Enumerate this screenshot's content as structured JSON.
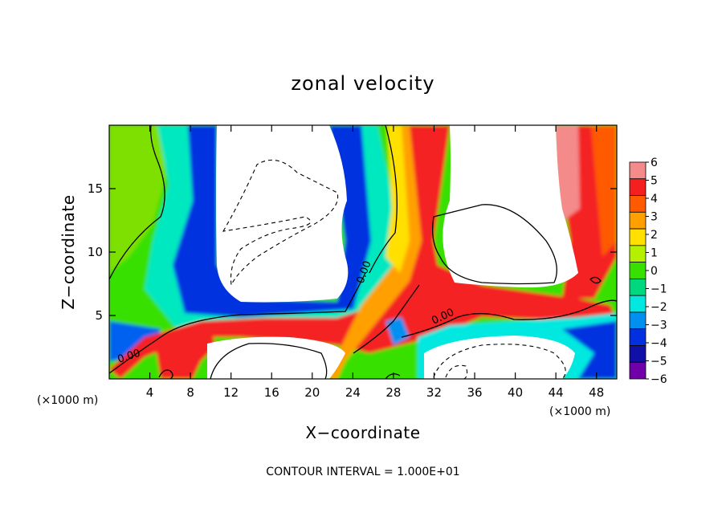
{
  "chart_data": {
    "type": "heatmap",
    "title": "zonal velocity",
    "xlabel": "X−coordinate",
    "ylabel": "Z−coordinate",
    "x_unit_note": "(×1000 m)",
    "z_unit_note": "(×1000 m)",
    "footer": "CONTOUR INTERVAL = 1.000E+01",
    "xlim": [
      0,
      50
    ],
    "ylim": [
      0,
      20
    ],
    "x_ticks": [
      4,
      8,
      12,
      16,
      20,
      24,
      28,
      32,
      36,
      40,
      44,
      48
    ],
    "x_tick_labels": [
      "4",
      "8",
      "12",
      "16",
      "20",
      "24",
      "28",
      "32",
      "36",
      "40",
      "44",
      "48"
    ],
    "y_ticks": [
      5,
      10,
      15
    ],
    "y_tick_labels": [
      "5",
      "10",
      "15"
    ],
    "colorbar": {
      "levels": [
        6,
        5,
        4,
        3,
        2,
        1,
        0,
        -1,
        -2,
        -3,
        -4,
        -5,
        -6
      ],
      "labels": [
        "6",
        "5",
        "4",
        "3",
        "2",
        "1",
        "0",
        "−1",
        "−2",
        "−3",
        "−4",
        "−5",
        "−6"
      ],
      "colors": [
        "#f48a8a",
        "#f42020",
        "#ff5a00",
        "#ffa000",
        "#ffe000",
        "#b4f000",
        "#38e000",
        "#00d880",
        "#00e8e0",
        "#0090f0",
        "#0030e0",
        "#1010a8",
        "#7000a8"
      ]
    },
    "contour_labels": [
      "0.00",
      "0.00",
      "0.00"
    ],
    "contour_interval": 10,
    "grid": false,
    "legend": "colorbar-right"
  }
}
